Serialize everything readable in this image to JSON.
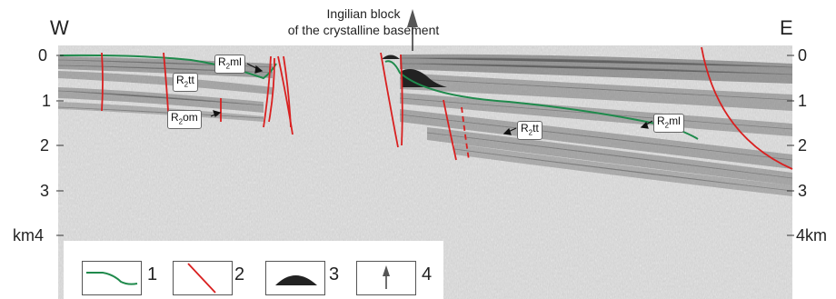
{
  "directions": {
    "west": "W",
    "east": "E"
  },
  "title": {
    "line1": "Ingilian block",
    "line2": "of the crystalline basement"
  },
  "depth_axis": {
    "left_ticks": [
      "0",
      "1",
      "2",
      "3",
      "km4"
    ],
    "right_ticks": [
      "0",
      "1",
      "2",
      "3",
      "4km"
    ]
  },
  "horizon_labels": [
    {
      "id": "r2ml-left",
      "prefix": "R",
      "sub": "2",
      "suffix": "ml"
    },
    {
      "id": "r2tt-left",
      "prefix": "R",
      "sub": "2",
      "suffix": "tt"
    },
    {
      "id": "r2om-left",
      "prefix": "R",
      "sub": "2",
      "suffix": "om"
    },
    {
      "id": "r2tt-right",
      "prefix": "R",
      "sub": "2",
      "suffix": "tt"
    },
    {
      "id": "r2ml-right",
      "prefix": "R",
      "sub": "2",
      "suffix": "ml"
    }
  ],
  "legend": [
    "1",
    "2",
    "3",
    "4"
  ],
  "colors": {
    "horizon": "#1f8a4c",
    "fault": "#d92020",
    "basement": "#222222",
    "seismic": "#cfcfcf"
  },
  "icons": {
    "1": "green-horizon-line-icon",
    "2": "red-fault-line-icon",
    "3": "black-mound-icon",
    "4": "up-arrow-icon"
  }
}
